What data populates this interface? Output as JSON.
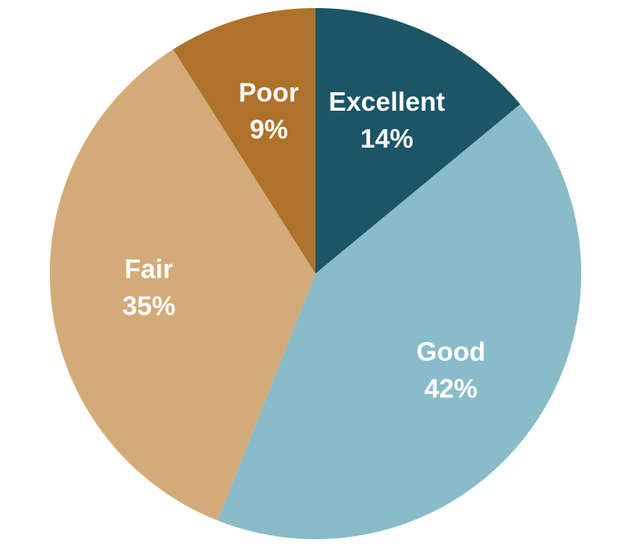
{
  "chart_data": {
    "type": "pie",
    "categories": [
      "Excellent",
      "Good",
      "Fair",
      "Poor"
    ],
    "values": [
      14,
      42,
      35,
      9
    ],
    "value_labels": [
      "14%",
      "42%",
      "35%",
      "9%"
    ],
    "colors": [
      "#1b5566",
      "#88bcc8",
      "#d3ab78",
      "#ae722b"
    ]
  }
}
